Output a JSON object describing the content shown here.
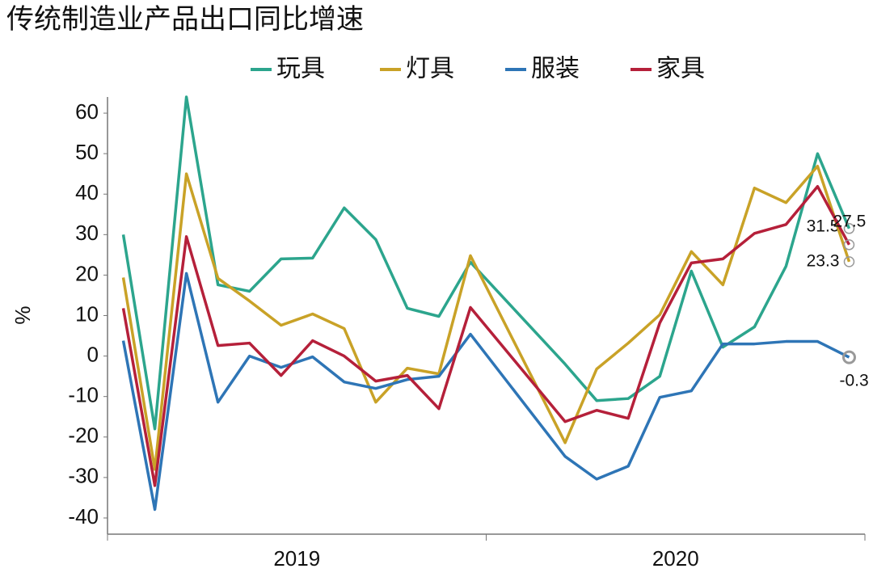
{
  "chart_data": {
    "type": "line",
    "title": "传统制造业产品出口同比增速",
    "y_label": "%",
    "x": [
      1,
      2,
      3,
      4,
      5,
      6,
      7,
      8,
      9,
      10,
      11,
      12,
      15,
      16,
      17,
      18,
      19,
      20,
      21,
      22,
      23,
      24
    ],
    "xlim": [
      0.5,
      24.5
    ],
    "x_groups": [
      "2019",
      "2020"
    ],
    "ylim": [
      -44,
      64
    ],
    "yticks": [
      -40,
      -30,
      -20,
      -10,
      0,
      10,
      20,
      30,
      40,
      50,
      60
    ],
    "grid": false,
    "legend": "top",
    "series": [
      {
        "name": "玩具",
        "color": "#2ca58d",
        "values": [
          30,
          -18,
          64,
          17.6,
          16,
          24,
          24.2,
          36.6,
          28.8,
          11.8,
          9.8,
          23.2,
          -2,
          -11,
          -10.5,
          -5,
          21,
          2.2,
          7.2,
          22.2,
          50,
          31.5
        ]
      },
      {
        "name": "灯具",
        "color": "#c9a227",
        "values": [
          19.4,
          -28,
          45,
          19.2,
          13.6,
          7.6,
          10.4,
          6.8,
          -11.4,
          -3,
          -4.4,
          24.8,
          -21.4,
          -3.2,
          3.2,
          10.2,
          25.8,
          17.6,
          41.5,
          37.9,
          46.9,
          23.3
        ]
      },
      {
        "name": "服装",
        "color": "#2e75b6",
        "values": [
          3.8,
          -37.9,
          20.4,
          -11.4,
          0,
          -2.8,
          -0.2,
          -6.4,
          -8,
          -5.8,
          -5,
          5.4,
          -24.8,
          -30.4,
          -27.2,
          -10.2,
          -8.6,
          3,
          3,
          3.6,
          3.6,
          -0.3
        ]
      },
      {
        "name": "家具",
        "color": "#b5203a",
        "values": [
          11.8,
          -32,
          29.5,
          2.6,
          3.2,
          -4.8,
          3.8,
          0,
          -6.2,
          -4.8,
          -13,
          12,
          -16.2,
          -13.4,
          -15.4,
          8.2,
          23,
          24,
          30.3,
          32.5,
          41.9,
          27.5
        ]
      }
    ]
  }
}
